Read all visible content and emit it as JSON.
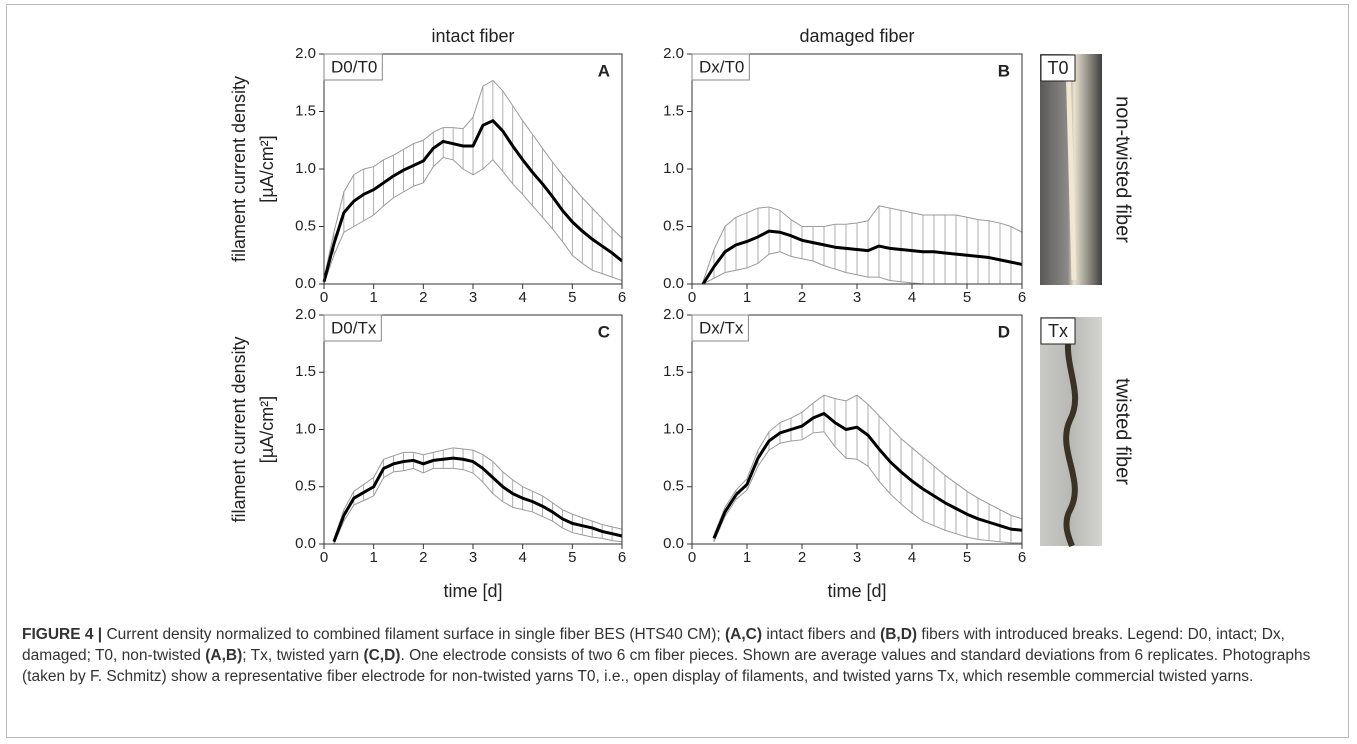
{
  "chart_data": [
    {
      "type": "line",
      "title": "intact fiber",
      "label": "D0/T0",
      "panel": "A",
      "ylabel": [
        "filament current density",
        "[µA/cm²]"
      ],
      "x": [
        0,
        0.2,
        0.4,
        0.6,
        0.8,
        1.0,
        1.2,
        1.4,
        1.6,
        1.8,
        2.0,
        2.2,
        2.4,
        2.6,
        2.8,
        3.0,
        3.2,
        3.4,
        3.6,
        3.8,
        4.0,
        4.2,
        4.4,
        4.6,
        4.8,
        5.0,
        5.2,
        5.4,
        5.6,
        5.8,
        6.0
      ],
      "values": [
        0.02,
        0.35,
        0.62,
        0.72,
        0.78,
        0.82,
        0.88,
        0.94,
        0.99,
        1.03,
        1.07,
        1.18,
        1.24,
        1.22,
        1.2,
        1.2,
        1.38,
        1.42,
        1.33,
        1.2,
        1.08,
        0.97,
        0.87,
        0.76,
        0.64,
        0.54,
        0.46,
        0.39,
        0.33,
        0.27,
        0.2
      ],
      "upper": [
        0.05,
        0.45,
        0.8,
        0.95,
        1.0,
        1.02,
        1.08,
        1.12,
        1.17,
        1.22,
        1.25,
        1.32,
        1.36,
        1.36,
        1.35,
        1.45,
        1.72,
        1.77,
        1.68,
        1.55,
        1.42,
        1.3,
        1.18,
        1.06,
        0.95,
        0.85,
        0.75,
        0.66,
        0.57,
        0.48,
        0.4
      ],
      "lower": [
        0,
        0.25,
        0.45,
        0.5,
        0.55,
        0.6,
        0.68,
        0.75,
        0.8,
        0.85,
        0.88,
        1.02,
        1.1,
        1.08,
        1.0,
        0.95,
        1.0,
        1.08,
        0.98,
        0.87,
        0.78,
        0.68,
        0.58,
        0.48,
        0.37,
        0.25,
        0.18,
        0.12,
        0.09,
        0.06,
        0.03
      ],
      "color": "#000000",
      "band_color": "#9a9a9a",
      "xlim": [
        0,
        6
      ],
      "xticks": [
        0,
        1,
        2,
        3,
        4,
        5,
        6
      ],
      "ylim": [
        0,
        2
      ],
      "yticks": [
        {
          "value": 0,
          "label": "0.0"
        },
        {
          "value": 0.5,
          "label": "0.5"
        },
        {
          "value": 1,
          "label": "1.0"
        },
        {
          "value": 1.5,
          "label": "1.5"
        },
        {
          "value": 2,
          "label": "2.0"
        }
      ]
    },
    {
      "type": "line",
      "title": "damaged fiber",
      "label": "Dx/T0",
      "panel": "B",
      "x": [
        0,
        0.2,
        0.4,
        0.6,
        0.8,
        1.0,
        1.2,
        1.4,
        1.6,
        1.8,
        2.0,
        2.2,
        2.4,
        2.6,
        2.8,
        3.0,
        3.2,
        3.4,
        3.6,
        3.8,
        4.0,
        4.2,
        4.4,
        4.6,
        4.8,
        5.0,
        5.2,
        5.4,
        5.6,
        5.8,
        6.0
      ],
      "values": [
        null,
        0,
        0.15,
        0.28,
        0.34,
        0.37,
        0.41,
        0.46,
        0.45,
        0.42,
        0.38,
        0.36,
        0.34,
        0.32,
        0.31,
        0.3,
        0.29,
        0.33,
        0.31,
        0.3,
        0.29,
        0.28,
        0.28,
        0.27,
        0.26,
        0.25,
        0.24,
        0.23,
        0.21,
        0.19,
        0.17
      ],
      "upper": [
        null,
        0.02,
        0.3,
        0.5,
        0.58,
        0.62,
        0.66,
        0.67,
        0.64,
        0.56,
        0.5,
        0.5,
        0.5,
        0.52,
        0.52,
        0.53,
        0.55,
        0.68,
        0.66,
        0.64,
        0.62,
        0.6,
        0.6,
        0.6,
        0.6,
        0.58,
        0.56,
        0.55,
        0.53,
        0.5,
        0.45
      ],
      "lower": [
        null,
        0,
        0.05,
        0.1,
        0.12,
        0.14,
        0.18,
        0.26,
        0.28,
        0.24,
        0.22,
        0.2,
        0.16,
        0.13,
        0.1,
        0.08,
        0.06,
        0.06,
        0.03,
        0.02,
        0.01,
        0,
        0,
        0,
        0,
        0,
        0,
        0,
        0,
        0,
        0
      ],
      "color": "#000000",
      "band_color": "#9a9a9a",
      "xlim": [
        0,
        6
      ],
      "xticks": [
        0,
        1,
        2,
        3,
        4,
        5,
        6
      ],
      "ylim": [
        0,
        2
      ],
      "yticks": [
        {
          "value": 0,
          "label": "0.0"
        },
        {
          "value": 0.5,
          "label": "0.5"
        },
        {
          "value": 1,
          "label": "1.0"
        },
        {
          "value": 1.5,
          "label": "1.5"
        },
        {
          "value": 2,
          "label": "2.0"
        }
      ]
    },
    {
      "type": "line",
      "label": "D0/Tx",
      "panel": "C",
      "ylabel": [
        "filament current density",
        "[µA/cm²]"
      ],
      "xlabel": "time [d]",
      "x": [
        0,
        0.2,
        0.4,
        0.6,
        0.8,
        1.0,
        1.2,
        1.4,
        1.6,
        1.8,
        2.0,
        2.2,
        2.4,
        2.6,
        2.8,
        3.0,
        3.2,
        3.4,
        3.6,
        3.8,
        4.0,
        4.2,
        4.4,
        4.6,
        4.8,
        5.0,
        5.2,
        5.4,
        5.6,
        5.8,
        6.0
      ],
      "values": [
        null,
        0.02,
        0.25,
        0.4,
        0.45,
        0.5,
        0.66,
        0.7,
        0.72,
        0.73,
        0.7,
        0.73,
        0.74,
        0.75,
        0.74,
        0.72,
        0.66,
        0.58,
        0.5,
        0.44,
        0.4,
        0.37,
        0.33,
        0.28,
        0.22,
        0.18,
        0.16,
        0.14,
        0.11,
        0.09,
        0.07
      ],
      "upper": [
        null,
        0.04,
        0.3,
        0.46,
        0.52,
        0.58,
        0.74,
        0.77,
        0.8,
        0.8,
        0.78,
        0.8,
        0.82,
        0.84,
        0.83,
        0.82,
        0.78,
        0.72,
        0.63,
        0.56,
        0.5,
        0.46,
        0.42,
        0.36,
        0.3,
        0.26,
        0.23,
        0.2,
        0.17,
        0.15,
        0.13
      ],
      "lower": [
        null,
        0,
        0.2,
        0.34,
        0.38,
        0.42,
        0.58,
        0.63,
        0.64,
        0.66,
        0.62,
        0.66,
        0.66,
        0.66,
        0.65,
        0.62,
        0.54,
        0.44,
        0.37,
        0.32,
        0.3,
        0.28,
        0.24,
        0.2,
        0.14,
        0.1,
        0.08,
        0.06,
        0.05,
        0.03,
        0.02
      ],
      "color": "#000000",
      "band_color": "#9a9a9a",
      "xlim": [
        0,
        6
      ],
      "xticks": [
        0,
        1,
        2,
        3,
        4,
        5,
        6
      ],
      "ylim": [
        0,
        2
      ],
      "yticks": [
        {
          "value": 0,
          "label": "0.0"
        },
        {
          "value": 0.5,
          "label": "0.5"
        },
        {
          "value": 1,
          "label": "1.0"
        },
        {
          "value": 1.5,
          "label": "1.5"
        },
        {
          "value": 2,
          "label": "2.0"
        }
      ]
    },
    {
      "type": "line",
      "label": "Dx/Tx",
      "panel": "D",
      "xlabel": "time [d]",
      "x": [
        0,
        0.2,
        0.4,
        0.6,
        0.8,
        1.0,
        1.2,
        1.4,
        1.6,
        1.8,
        2.0,
        2.2,
        2.4,
        2.6,
        2.8,
        3.0,
        3.2,
        3.4,
        3.6,
        3.8,
        4.0,
        4.2,
        4.4,
        4.6,
        4.8,
        5.0,
        5.2,
        5.4,
        5.6,
        5.8,
        6.0
      ],
      "values": [
        null,
        null,
        0.05,
        0.28,
        0.43,
        0.52,
        0.75,
        0.9,
        0.97,
        1.0,
        1.03,
        1.1,
        1.14,
        1.06,
        1.0,
        1.02,
        0.95,
        0.83,
        0.72,
        0.63,
        0.55,
        0.48,
        0.42,
        0.36,
        0.31,
        0.26,
        0.22,
        0.19,
        0.16,
        0.13,
        0.12
      ],
      "upper": [
        null,
        null,
        0.08,
        0.32,
        0.47,
        0.57,
        0.82,
        0.98,
        1.06,
        1.1,
        1.15,
        1.23,
        1.3,
        1.27,
        1.25,
        1.3,
        1.22,
        1.12,
        1.02,
        0.92,
        0.84,
        0.76,
        0.68,
        0.6,
        0.53,
        0.46,
        0.4,
        0.35,
        0.3,
        0.25,
        0.22
      ],
      "lower": [
        null,
        null,
        0.02,
        0.24,
        0.39,
        0.47,
        0.68,
        0.82,
        0.88,
        0.9,
        0.91,
        0.97,
        0.98,
        0.85,
        0.75,
        0.74,
        0.68,
        0.55,
        0.44,
        0.35,
        0.27,
        0.2,
        0.16,
        0.12,
        0.09,
        0.06,
        0.04,
        0.03,
        0.02,
        0.01,
        0.01
      ],
      "color": "#000000",
      "band_color": "#9a9a9a",
      "xlim": [
        0,
        6
      ],
      "xticks": [
        0,
        1,
        2,
        3,
        4,
        5,
        6
      ],
      "ylim": [
        0,
        2
      ],
      "yticks": [
        {
          "value": 0,
          "label": "0.0"
        },
        {
          "value": 0.5,
          "label": "0.5"
        },
        {
          "value": 1,
          "label": "1.0"
        },
        {
          "value": 1.5,
          "label": "1.5"
        },
        {
          "value": 2,
          "label": "2.0"
        }
      ]
    }
  ],
  "photos": [
    {
      "label": "T0",
      "caption": "non-twisted fiber"
    },
    {
      "label": "Tx",
      "caption": "twisted fiber"
    }
  ],
  "caption": [
    {
      "text": "FIGURE 4 |",
      "bold": true
    },
    {
      "text": " Current density normalized to combined filament surface in single fiber BES (HTS40 CM); ",
      "bold": false
    },
    {
      "text": "(A,C)",
      "bold": true
    },
    {
      "text": " intact fibers and ",
      "bold": false
    },
    {
      "text": "(B,D)",
      "bold": true
    },
    {
      "text": " fibers with introduced breaks. Legend: D0, intact; Dx, damaged; T0, non-twisted ",
      "bold": false
    },
    {
      "text": "(A,B)",
      "bold": true
    },
    {
      "text": "; Tx, twisted yarn ",
      "bold": false
    },
    {
      "text": "(C,D)",
      "bold": true
    },
    {
      "text": ". One electrode consists of two 6 cm fiber pieces. Shown are average values and standard deviations from 6 replicates. Photographs (taken by F. Schmitz) show a representative fiber electrode for non-twisted yarns T0, i.e., open display of filaments, and twisted yarns Tx, which resemble commercial twisted yarns.",
      "bold": false
    }
  ]
}
